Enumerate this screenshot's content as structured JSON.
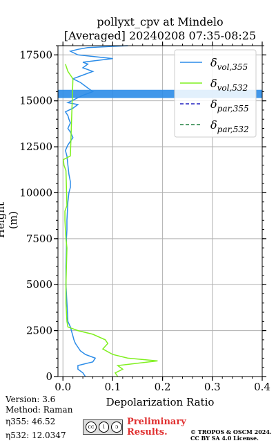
{
  "chart_data": {
    "type": "line",
    "title": "pollyxt_cpv at Mindelo",
    "subtitle": "[Averaged] 20240208 07:35-08:25",
    "xlabel": "Depolarization Ratio",
    "ylabel": "Height (m)",
    "xlim": [
      -0.01,
      0.4
    ],
    "ylim": [
      0,
      18000
    ],
    "xticks": [
      "0.0",
      "0.1",
      "0.2",
      "0.3",
      "0.4"
    ],
    "xtick_values": [
      0,
      0.1,
      0.2,
      0.3,
      0.4
    ],
    "yticks": [
      "0",
      "2500",
      "5000",
      "7500",
      "10000",
      "12500",
      "15000",
      "17500"
    ],
    "ytick_values": [
      0,
      2500,
      5000,
      7500,
      10000,
      12500,
      15000,
      17500
    ],
    "grid": true,
    "legend_position": "top-right",
    "series": [
      {
        "name": "δ_vol,355",
        "color": "#2b8ce8",
        "style": "solid",
        "x": [
          0.045,
          0.04,
          0.03,
          0.03,
          0.06,
          0.065,
          0.045,
          0.035,
          0.03,
          0.025,
          0.022,
          0.02,
          0.018,
          0.015,
          0.01,
          0.008,
          0.006,
          0.006,
          0.007,
          0.007,
          0.008,
          0.008,
          0.009,
          0.01,
          0.012,
          0.015,
          0.015,
          0.012,
          0.01,
          0.008,
          0.005,
          0.01,
          0.02,
          0.015,
          0.01,
          0.015,
          0.012,
          0.01,
          0.005,
          0.02,
          0.03,
          0.01,
          0.025,
          0.04,
          0.06,
          0.05,
          0.035,
          0.02,
          0.04,
          0.06,
          0.04,
          0.05,
          0.04,
          0.1,
          0.03,
          0.015,
          0.03,
          0.05,
          0.13
        ],
        "y": [
          0,
          200,
          400,
          600,
          800,
          1000,
          1200,
          1400,
          1600,
          1800,
          2000,
          2200,
          2400,
          2700,
          3000,
          4000,
          5000,
          6000,
          7000,
          7500,
          8000,
          8500,
          9000,
          9500,
          10000,
          10300,
          10600,
          11000,
          11500,
          12000,
          12300,
          12600,
          13000,
          13300,
          13500,
          13800,
          14000,
          14200,
          14400,
          14600,
          14800,
          14900,
          15100,
          15300,
          15500,
          15700,
          16000,
          16200,
          16400,
          16600,
          16800,
          17000,
          17100,
          17300,
          17500,
          17700,
          17800,
          17900,
          18000
        ]
      },
      {
        "name": "δ_vol,532",
        "color": "#7ff01e",
        "style": "solid",
        "x": [
          0.11,
          0.105,
          0.12,
          0.11,
          0.19,
          0.13,
          0.1,
          0.08,
          0.09,
          0.085,
          0.06,
          0.03,
          0.01,
          0.008,
          0.006,
          0.006,
          0.007,
          0.008,
          0.006,
          0.005,
          0.004,
          0.004,
          0.008,
          0.006,
          0.002,
          0.001,
          0.015,
          0.02,
          0.01,
          0.005
        ],
        "y": [
          0,
          200,
          400,
          600,
          850,
          1000,
          1200,
          1500,
          1800,
          2000,
          2300,
          2500,
          2700,
          3000,
          4000,
          5000,
          6000,
          7000,
          7500,
          8000,
          8500,
          9000,
          9300,
          11200,
          11500,
          11800,
          12000,
          16200,
          16600,
          17000
        ]
      },
      {
        "name": "δ_par,355",
        "color": "#2020c0",
        "style": "dashed",
        "x": [],
        "y": []
      },
      {
        "name": "δ_par,532",
        "color": "#208040",
        "style": "dashed",
        "x": [],
        "y": []
      }
    ],
    "band": {
      "y": [
        15150,
        15600
      ],
      "color": "#2b8ce8"
    }
  },
  "info": {
    "version": "Version: 3.6",
    "method": "Method: Raman",
    "eta355": "η355:  46.52",
    "eta532": "η532: 12.0347"
  },
  "preliminary": [
    "Preliminary",
    "Results."
  ],
  "copyright": [
    "© TROPOS & OSCM 2024.",
    "CC BY SA 4.0 License."
  ],
  "license_badge": "cc-by-sa-icon"
}
